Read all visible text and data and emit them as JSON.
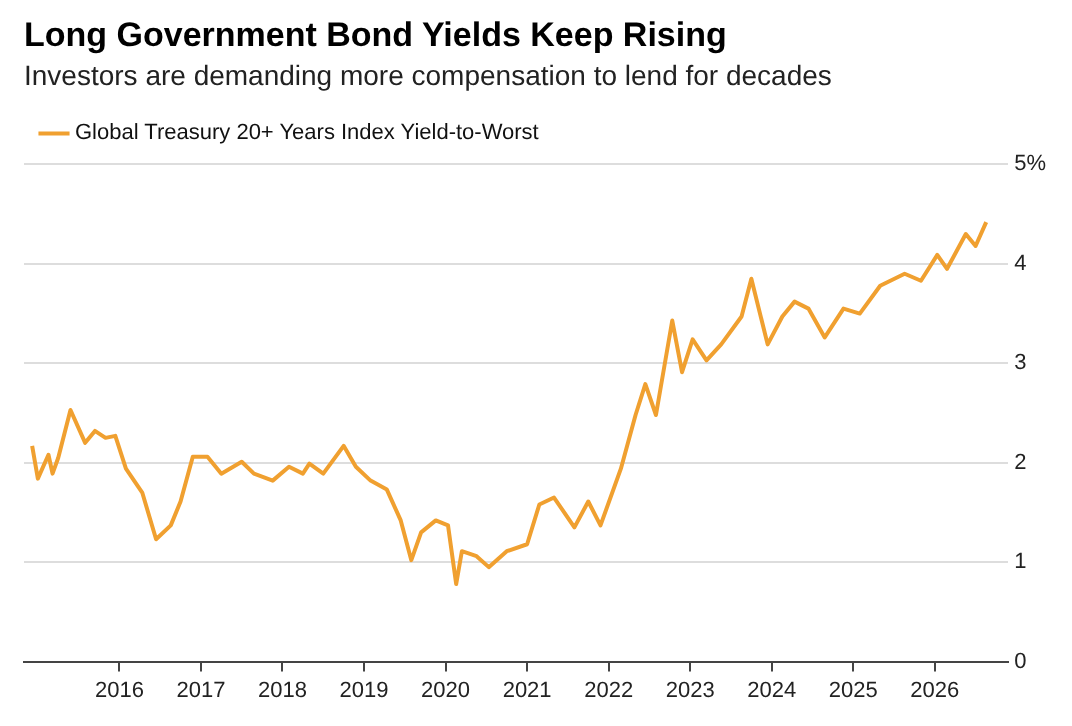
{
  "chart_data": {
    "type": "line",
    "title": "Long Government Bond Yields Keep Rising",
    "subtitle": "Investors are demanding more compensation to lend for decades",
    "x": [
      2014.93,
      2015.0,
      2015.13,
      2015.18,
      2015.25,
      2015.4,
      2015.58,
      2015.7,
      2015.83,
      2015.95,
      2016.08,
      2016.28,
      2016.45,
      2016.63,
      2016.75,
      2016.9,
      2017.08,
      2017.25,
      2017.5,
      2017.65,
      2017.88,
      2018.08,
      2018.25,
      2018.33,
      2018.5,
      2018.75,
      2018.9,
      2019.08,
      2019.28,
      2019.45,
      2019.58,
      2019.7,
      2019.88,
      2020.03,
      2020.13,
      2020.2,
      2020.38,
      2020.53,
      2020.75,
      2021.0,
      2021.15,
      2021.33,
      2021.58,
      2021.75,
      2021.9,
      2022.15,
      2022.33,
      2022.45,
      2022.58,
      2022.78,
      2022.9,
      2023.03,
      2023.2,
      2023.38,
      2023.63,
      2023.75,
      2023.95,
      2024.13,
      2024.28,
      2024.45,
      2024.65,
      2024.88,
      2025.08,
      2025.33,
      2025.63,
      2025.83,
      2026.03,
      2026.15,
      2026.38,
      2026.5,
      2026.63
    ],
    "series": [
      {
        "name": "Global Treasury 20+ Years Index Yield-to-Worst",
        "color": "#f0a030",
        "values": [
          2.17,
          1.84,
          2.08,
          1.89,
          2.05,
          2.53,
          2.2,
          2.32,
          2.25,
          2.27,
          1.94,
          1.7,
          1.23,
          1.37,
          1.61,
          2.06,
          2.06,
          1.89,
          2.01,
          1.89,
          1.82,
          1.96,
          1.89,
          1.99,
          1.89,
          2.17,
          1.96,
          1.82,
          1.73,
          1.42,
          1.02,
          1.3,
          1.42,
          1.37,
          0.78,
          1.11,
          1.06,
          0.95,
          1.11,
          1.18,
          1.58,
          1.65,
          1.35,
          1.61,
          1.37,
          1.94,
          2.48,
          2.79,
          2.48,
          3.43,
          2.91,
          3.24,
          3.03,
          3.19,
          3.47,
          3.85,
          3.19,
          3.47,
          3.62,
          3.55,
          3.26,
          3.55,
          3.5,
          3.78,
          3.9,
          3.83,
          4.09,
          3.95,
          4.3,
          4.18,
          4.42
        ]
      }
    ],
    "xlim": [
      2014.83,
      2026.9
    ],
    "xticks": [
      2016,
      2017,
      2018,
      2019,
      2020,
      2021,
      2022,
      2023,
      2024,
      2025,
      2026
    ],
    "ylim": [
      0,
      5
    ],
    "yticks": [
      0,
      1,
      2,
      3,
      4,
      {
        "value": 5,
        "label": "5%"
      }
    ],
    "grid": "y",
    "legend": "top left",
    "marker": "none",
    "line_style": "solid"
  }
}
